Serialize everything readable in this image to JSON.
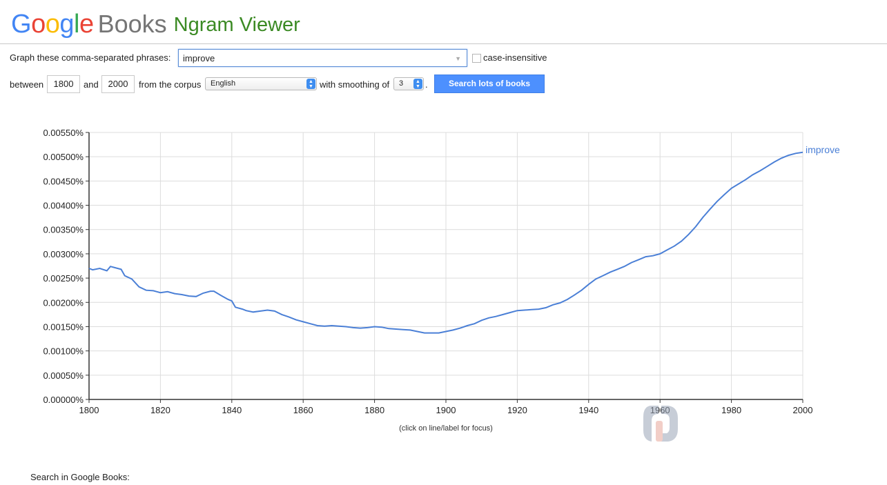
{
  "logo": {
    "google_letters": [
      {
        "ch": "G",
        "color": "#4285F4"
      },
      {
        "ch": "o",
        "color": "#EA4335"
      },
      {
        "ch": "o",
        "color": "#FBBC05"
      },
      {
        "ch": "g",
        "color": "#4285F4"
      },
      {
        "ch": "l",
        "color": "#34A853"
      },
      {
        "ch": "e",
        "color": "#EA4335"
      }
    ],
    "books": "Books",
    "product": "Ngram Viewer"
  },
  "form": {
    "phrases_label": "Graph these comma-separated phrases:",
    "phrases_value": "improve",
    "case_label": "case-insensitive",
    "between_label": "between",
    "start_year": "1800",
    "and_label": "and",
    "end_year": "2000",
    "corpus_label": "from the corpus",
    "corpus_value": "English",
    "smoothing_label": "with smoothing of",
    "smoothing_value": "3",
    "period": ".",
    "search_button": "Search lots of books"
  },
  "chart_data": {
    "type": "line",
    "xlim": [
      1800,
      2000
    ],
    "ylim": [
      0,
      0.0055
    ],
    "x_ticks": [
      "1800",
      "1820",
      "1840",
      "1860",
      "1880",
      "1900",
      "1920",
      "1940",
      "1960",
      "1980",
      "2000"
    ],
    "y_ticks": [
      "0.00000%",
      "0.00050%",
      "0.00100%",
      "0.00150%",
      "0.00200%",
      "0.00250%",
      "0.00300%",
      "0.00350%",
      "0.00400%",
      "0.00450%",
      "0.00500%",
      "0.00550%"
    ],
    "grid": true,
    "note": "(click on line/label for focus)",
    "series": [
      {
        "name": "improve",
        "color": "#4a7fd6",
        "x": [
          1800,
          1801,
          1803,
          1805,
          1806,
          1807,
          1809,
          1810,
          1812,
          1814,
          1816,
          1818,
          1819,
          1820,
          1822,
          1824,
          1826,
          1828,
          1830,
          1832,
          1834,
          1835,
          1837,
          1839,
          1840,
          1841,
          1843,
          1844,
          1846,
          1848,
          1850,
          1852,
          1854,
          1856,
          1858,
          1860,
          1862,
          1864,
          1866,
          1868,
          1870,
          1872,
          1874,
          1876,
          1878,
          1880,
          1882,
          1884,
          1886,
          1888,
          1890,
          1892,
          1894,
          1896,
          1898,
          1900,
          1902,
          1904,
          1906,
          1908,
          1910,
          1912,
          1914,
          1916,
          1918,
          1920,
          1922,
          1924,
          1926,
          1928,
          1930,
          1932,
          1934,
          1936,
          1938,
          1940,
          1942,
          1944,
          1946,
          1948,
          1950,
          1952,
          1954,
          1956,
          1958,
          1960,
          1962,
          1964,
          1966,
          1968,
          1970,
          1972,
          1974,
          1976,
          1978,
          1980,
          1982,
          1984,
          1986,
          1988,
          1990,
          1992,
          1994,
          1996,
          1998,
          2000
        ],
        "y": [
          0.0027,
          0.00267,
          0.0027,
          0.00265,
          0.00274,
          0.00272,
          0.00268,
          0.00255,
          0.00248,
          0.00232,
          0.00225,
          0.00224,
          0.00222,
          0.0022,
          0.00222,
          0.00218,
          0.00216,
          0.00213,
          0.00212,
          0.00219,
          0.00223,
          0.00223,
          0.00214,
          0.00206,
          0.00203,
          0.0019,
          0.00186,
          0.00183,
          0.0018,
          0.00182,
          0.00184,
          0.00182,
          0.00175,
          0.0017,
          0.00164,
          0.0016,
          0.00156,
          0.00152,
          0.00151,
          0.00152,
          0.00151,
          0.0015,
          0.00148,
          0.00147,
          0.00148,
          0.0015,
          0.00149,
          0.00146,
          0.00145,
          0.00144,
          0.00143,
          0.0014,
          0.00137,
          0.00137,
          0.00137,
          0.0014,
          0.00143,
          0.00147,
          0.00152,
          0.00156,
          0.00163,
          0.00168,
          0.00171,
          0.00175,
          0.00179,
          0.00183,
          0.00184,
          0.00185,
          0.00186,
          0.00189,
          0.00195,
          0.00199,
          0.00206,
          0.00215,
          0.00225,
          0.00237,
          0.00248,
          0.00255,
          0.00262,
          0.00268,
          0.00274,
          0.00282,
          0.00288,
          0.00294,
          0.00296,
          0.003,
          0.00308,
          0.00316,
          0.00326,
          0.0034,
          0.00356,
          0.00375,
          0.00392,
          0.00408,
          0.00422,
          0.00435,
          0.00444,
          0.00453,
          0.00463,
          0.00471,
          0.0048,
          0.00489,
          0.00497,
          0.00503,
          0.00507,
          0.00509
        ]
      }
    ]
  },
  "footer": {
    "search_label": "Search in Google Books:"
  }
}
